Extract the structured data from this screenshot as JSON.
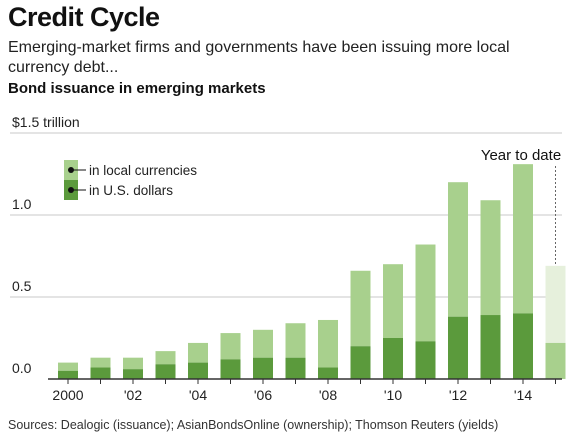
{
  "header": {
    "title": "Credit Cycle",
    "subtitle": "Emerging-market firms and governments have been issuing more local currency debt...",
    "chart_heading": "Bond issuance in emerging markets"
  },
  "source": "Sources: Dealogic (issuance); AsianBondsOnline (ownership); Thomson Reuters (yields)",
  "colors": {
    "local": "#a8d08d",
    "usd": "#5b9a3c",
    "local_ytd": "#e6f0dc",
    "axis": "#333333",
    "grid": "#c8c8c8"
  },
  "chart_data": {
    "type": "bar",
    "stacked": true,
    "title": "Bond issuance in emerging markets",
    "y_top_label": "$1.5 trillion",
    "ylim": [
      0,
      1.5
    ],
    "y_ticks": [
      0.0,
      0.5,
      1.0,
      1.5
    ],
    "y_tick_labels": [
      "0.0",
      "0.5",
      "1.0",
      "$1.5 trillion"
    ],
    "categories": [
      "2000",
      "2001",
      "2002",
      "2003",
      "2004",
      "2005",
      "2006",
      "2007",
      "2008",
      "2009",
      "2010",
      "2011",
      "2012",
      "2013",
      "2014",
      "2015"
    ],
    "x_tick_labels": [
      "2000",
      "",
      "'02",
      "",
      "'04",
      "",
      "'06",
      "",
      "'08",
      "",
      "'10",
      "",
      "'12",
      "",
      "'14",
      ""
    ],
    "series": [
      {
        "name": "in U.S. dollars",
        "values": [
          0.05,
          0.07,
          0.06,
          0.09,
          0.1,
          0.12,
          0.13,
          0.13,
          0.07,
          0.2,
          0.25,
          0.23,
          0.38,
          0.39,
          0.4,
          0.22
        ]
      },
      {
        "name": "in local currencies",
        "values": [
          0.05,
          0.06,
          0.07,
          0.08,
          0.12,
          0.16,
          0.17,
          0.21,
          0.29,
          0.46,
          0.45,
          0.59,
          0.82,
          0.7,
          0.91,
          0.47
        ]
      }
    ],
    "legend_position": "top-left",
    "annotation": "Year to date",
    "grid": true
  }
}
